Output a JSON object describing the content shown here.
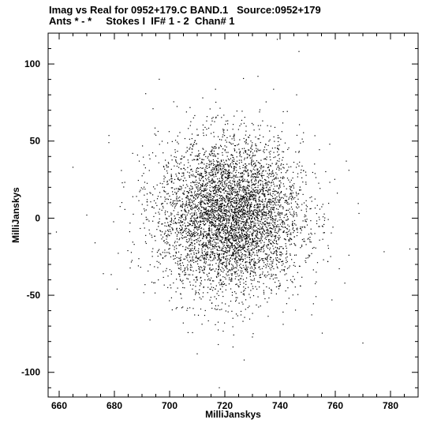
{
  "chart_data": {
    "type": "scatter",
    "title": "Imag vs Real for 0952+179.C BAND.1   Source:0952+179",
    "subtitle": "Ants * - *     Stokes I  IF# 1 - 2  Chan# 1",
    "xlabel": "MilliJanskys",
    "ylabel": "MilliJanskys",
    "xlim": [
      656,
      790
    ],
    "ylim": [
      -116,
      120
    ],
    "x_ticks": [
      660,
      680,
      700,
      720,
      740,
      760,
      780
    ],
    "y_ticks": [
      -100,
      -50,
      0,
      50,
      100
    ],
    "grid": false,
    "marker_color": "#000000",
    "series": [
      {
        "cloud": {
          "center": [
            722,
            1
          ],
          "stdev": [
            13,
            25
          ],
          "count": 5200
        },
        "outliers": [
          [
            659,
            -9
          ],
          [
            665,
            33
          ],
          [
            670,
            2
          ],
          [
            673,
            -16
          ],
          [
            676,
            -36
          ],
          [
            678,
            49
          ],
          [
            739,
            116
          ],
          [
            746,
            80
          ],
          [
            770,
            -81
          ],
          [
            787,
            -20
          ],
          [
            710,
            -88
          ],
          [
            718,
            -110
          ],
          [
            727,
            -92
          ],
          [
            712,
            78
          ],
          [
            732,
            92
          ],
          [
            694,
            71
          ],
          [
            764,
            37
          ],
          [
            758,
            48
          ],
          [
            689,
            37
          ],
          [
            681,
            -46
          ]
        ]
      }
    ]
  }
}
